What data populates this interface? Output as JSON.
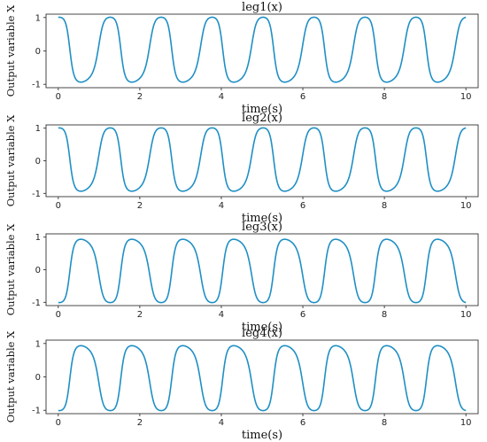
{
  "chart_data": [
    {
      "type": "line",
      "title": "leg1(x)",
      "xlabel": "time(s)",
      "ylabel": "Output variable X",
      "xlim": [
        -0.3,
        10.3
      ],
      "ylim": [
        -1.1,
        1.1
      ],
      "xticks": [
        0,
        2,
        4,
        6,
        8,
        10
      ],
      "yticks": [
        1,
        0,
        -1
      ],
      "grid": false,
      "series": [
        {
          "color": "#1f8fc4",
          "period_s": 1.25,
          "phase": "starts near 1, falls first",
          "x": [
            0,
            0.1,
            0.2,
            0.3,
            0.4,
            0.5,
            0.625,
            0.7,
            0.8,
            0.9,
            1.0,
            1.1,
            1.25,
            1.875,
            2.5,
            3.125,
            3.75,
            4.375,
            5.0,
            5.625,
            6.25,
            6.875,
            7.5,
            8.125,
            8.75,
            9.375,
            10.0
          ],
          "y": [
            1.0,
            0.9,
            0.6,
            0.1,
            -0.4,
            -0.85,
            -1.0,
            -0.8,
            -0.1,
            0.6,
            1.0,
            1.05,
            1.0,
            -1.0,
            1.0,
            -1.0,
            1.0,
            -1.0,
            1.0,
            -1.0,
            1.0,
            -1.0,
            1.0,
            -1.0,
            1.0,
            -1.0,
            0.95
          ]
        }
      ]
    },
    {
      "type": "line",
      "title": "leg2(x)",
      "xlabel": "time(s)",
      "ylabel": "Output variable X",
      "xlim": [
        -0.3,
        10.3
      ],
      "ylim": [
        -1.1,
        1.1
      ],
      "xticks": [
        0,
        2,
        4,
        6,
        8,
        10
      ],
      "yticks": [
        1,
        0,
        -1
      ],
      "grid": false,
      "series": [
        {
          "color": "#1f8fc4",
          "period_s": 1.25,
          "phase": "starts near 1, falls first",
          "x": [
            0,
            0.625,
            1.25,
            1.875,
            2.5,
            3.125,
            3.75,
            4.375,
            5.0,
            5.625,
            6.25,
            6.875,
            7.5,
            8.125,
            8.75,
            9.375,
            10.0
          ],
          "y": [
            1.0,
            -1.0,
            1.0,
            -1.0,
            1.0,
            -1.0,
            1.0,
            -1.0,
            1.0,
            -1.0,
            1.0,
            -1.0,
            1.0,
            -1.0,
            1.0,
            -1.0,
            0.95
          ]
        }
      ]
    },
    {
      "type": "line",
      "title": "leg3(x)",
      "xlabel": "time(s)",
      "ylabel": "Output variable X",
      "xlim": [
        -0.3,
        10.3
      ],
      "ylim": [
        -1.1,
        1.1
      ],
      "xticks": [
        0,
        2,
        4,
        6,
        8,
        10
      ],
      "yticks": [
        1,
        0,
        -1
      ],
      "grid": false,
      "series": [
        {
          "color": "#1f8fc4",
          "period_s": 1.25,
          "phase": "starts near -1, rises first",
          "x": [
            0,
            0.625,
            1.25,
            1.875,
            2.5,
            3.125,
            3.75,
            4.375,
            5.0,
            5.625,
            6.25,
            6.875,
            7.5,
            8.125,
            8.75,
            9.375,
            10.0
          ],
          "y": [
            -1.0,
            1.0,
            -1.0,
            1.0,
            -1.0,
            1.0,
            -1.0,
            1.0,
            -1.0,
            1.0,
            -1.0,
            1.0,
            -1.0,
            1.0,
            -1.0,
            1.0,
            -1.0
          ]
        }
      ]
    },
    {
      "type": "line",
      "title": "leg4(x)",
      "xlabel": "time(s)",
      "ylabel": "Output variable X",
      "xlim": [
        -0.3,
        10.3
      ],
      "ylim": [
        -1.1,
        1.1
      ],
      "xticks": [
        0,
        2,
        4,
        6,
        8,
        10
      ],
      "yticks": [
        1,
        0,
        -1
      ],
      "grid": false,
      "series": [
        {
          "color": "#1f8fc4",
          "period_s": 1.25,
          "phase": "starts near -1, rises first",
          "x": [
            0,
            0.625,
            1.25,
            1.875,
            2.5,
            3.125,
            3.75,
            4.375,
            5.0,
            5.625,
            6.25,
            6.875,
            7.5,
            8.125,
            8.75,
            9.375,
            10.0
          ],
          "y": [
            -1.0,
            1.0,
            -1.0,
            1.0,
            -1.0,
            1.0,
            -1.0,
            1.0,
            -1.0,
            1.0,
            -1.0,
            1.0,
            -1.0,
            1.0,
            -1.0,
            1.0,
            -1.0
          ]
        }
      ]
    }
  ]
}
